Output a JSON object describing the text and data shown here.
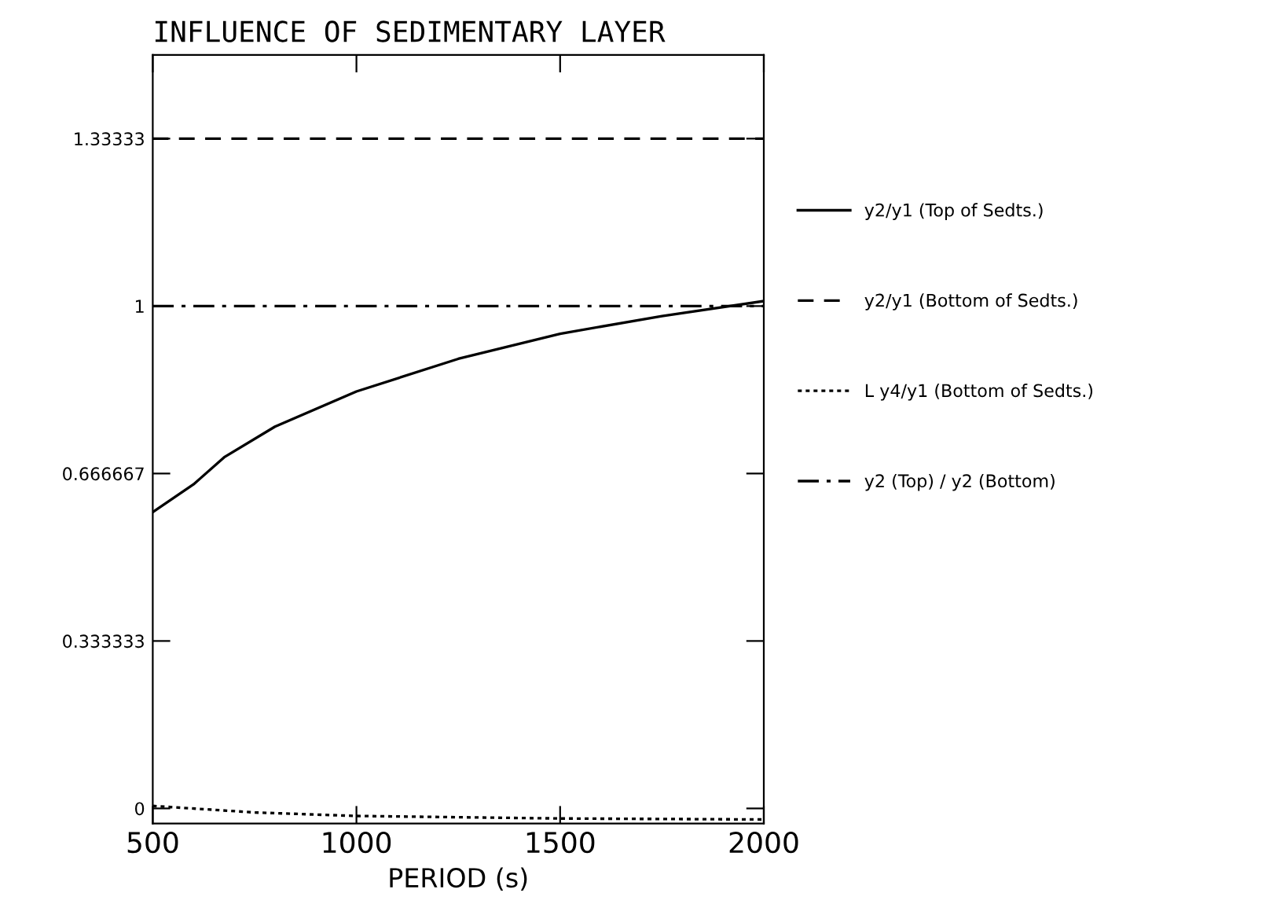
{
  "chart_data": {
    "type": "line",
    "title": "INFLUENCE OF SEDIMENTARY LAYER",
    "xlabel": "PERIOD (s)",
    "xlim": [
      500,
      2000
    ],
    "xticks": [
      500,
      1000,
      1500,
      2000
    ],
    "ylim": [
      -0.03,
      1.5
    ],
    "yticks": [
      0,
      0.333333,
      0.666667,
      1,
      1.33333
    ],
    "grid": false,
    "legend": "right",
    "marker": "none",
    "series": [
      {
        "name": "y2/y1 (Top of Sedts.)",
        "color": "#000000",
        "line_style": "solid",
        "x": [
          500,
          600,
          677,
          800,
          1000,
          1250,
          1500,
          1750,
          2000
        ],
        "values": [
          0.59,
          0.645,
          0.7,
          0.76,
          0.83,
          0.895,
          0.945,
          0.98,
          1.01
        ]
      },
      {
        "name": "y2/y1 (Bottom of Sedts.)",
        "color": "#000000",
        "line_style": "dashed",
        "x": [
          500,
          2000
        ],
        "values": [
          1.33333,
          1.33333
        ]
      },
      {
        "name": "L y4/y1 (Bottom of Sedts.)",
        "color": "#000000",
        "line_style": "dotted",
        "x": [
          500,
          750,
          1000,
          1500,
          2000
        ],
        "values": [
          0.005,
          -0.008,
          -0.015,
          -0.02,
          -0.022
        ]
      },
      {
        "name": "y2 (Top) / y2 (Bottom)",
        "color": "#000000",
        "line_style": "dashdot",
        "x": [
          500,
          2000
        ],
        "values": [
          1,
          1
        ]
      }
    ]
  }
}
